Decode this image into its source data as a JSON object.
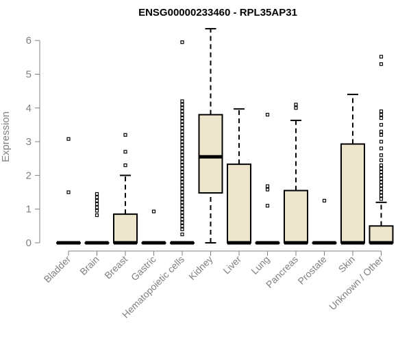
{
  "chart_data": {
    "type": "box",
    "title": "ENSG00000233460 - RPL35AP31",
    "xlabel": "",
    "ylabel": "Expression",
    "ylim": [
      0,
      6.4
    ],
    "yticks": [
      0,
      1,
      2,
      3,
      4,
      5,
      6
    ],
    "grid": false,
    "box_color": "#ede6cc",
    "categories": [
      "Bladder",
      "Brain",
      "Breast",
      "Gastric",
      "Hematopoietic cells",
      "Kidney",
      "Liver",
      "Lung",
      "Pancreas",
      "Prostate",
      "Skin",
      "Unknown / Other"
    ],
    "boxes": [
      {
        "category": "Bladder",
        "q1": 0,
        "median": 0,
        "q3": 0,
        "whisker_low": 0,
        "whisker_high": 0,
        "outliers": [
          1.5,
          3.08
        ]
      },
      {
        "category": "Brain",
        "q1": 0,
        "median": 0,
        "q3": 0,
        "whisker_low": 0,
        "whisker_high": 0,
        "outliers": [
          0.82,
          0.95,
          1.05,
          1.15,
          1.25,
          1.35,
          1.45
        ]
      },
      {
        "category": "Breast",
        "q1": 0,
        "median": 0,
        "q3": 0.85,
        "whisker_low": 0,
        "whisker_high": 2.0,
        "outliers": [
          2.3,
          2.7,
          3.2
        ]
      },
      {
        "category": "Gastric",
        "q1": 0,
        "median": 0,
        "q3": 0,
        "whisker_low": 0,
        "whisker_high": 0,
        "outliers": [
          0.93
        ]
      },
      {
        "category": "Hematopoietic cells",
        "q1": 0,
        "median": 0,
        "q3": 0,
        "whisker_low": 0,
        "whisker_high": 0,
        "outliers": [
          0.25,
          0.4,
          0.5,
          0.6,
          0.7,
          0.8,
          0.9,
          1.0,
          1.1,
          1.2,
          1.3,
          1.4,
          1.5,
          1.6,
          1.7,
          1.8,
          1.9,
          2.0,
          2.1,
          2.2,
          2.3,
          2.4,
          2.5,
          2.6,
          2.7,
          2.8,
          2.9,
          3.0,
          3.1,
          3.2,
          3.3,
          3.4,
          3.5,
          3.6,
          3.7,
          3.8,
          3.9,
          4.0,
          4.1,
          4.2,
          5.95
        ]
      },
      {
        "category": "Kidney",
        "q1": 1.48,
        "median": 2.55,
        "q3": 3.8,
        "whisker_low": 0,
        "whisker_high": 6.35,
        "outliers": []
      },
      {
        "category": "Liver",
        "q1": 0,
        "median": 0,
        "q3": 2.33,
        "whisker_low": 0,
        "whisker_high": 3.97,
        "outliers": []
      },
      {
        "category": "Lung",
        "q1": 0,
        "median": 0,
        "q3": 0,
        "whisker_low": 0,
        "whisker_high": 0,
        "outliers": [
          1.1,
          1.58,
          1.68,
          3.8
        ]
      },
      {
        "category": "Pancreas",
        "q1": 0,
        "median": 0,
        "q3": 1.55,
        "whisker_low": 0,
        "whisker_high": 3.63,
        "outliers": [
          4.0,
          4.1
        ]
      },
      {
        "category": "Prostate",
        "q1": 0,
        "median": 0,
        "q3": 0,
        "whisker_low": 0,
        "whisker_high": 0,
        "outliers": [
          1.25
        ]
      },
      {
        "category": "Skin",
        "q1": 0,
        "median": 0,
        "q3": 2.93,
        "whisker_low": 0,
        "whisker_high": 4.4,
        "outliers": []
      },
      {
        "category": "Unknown / Other",
        "q1": 0,
        "median": 0,
        "q3": 0.5,
        "whisker_low": 0,
        "whisker_high": 1.2,
        "outliers": [
          1.3,
          1.4,
          1.5,
          1.6,
          1.7,
          1.8,
          1.9,
          2.0,
          2.1,
          2.2,
          2.3,
          2.45,
          2.6,
          2.8,
          3.0,
          3.2,
          3.3,
          3.5,
          3.7,
          3.8,
          3.9,
          5.3,
          5.52
        ]
      }
    ]
  }
}
